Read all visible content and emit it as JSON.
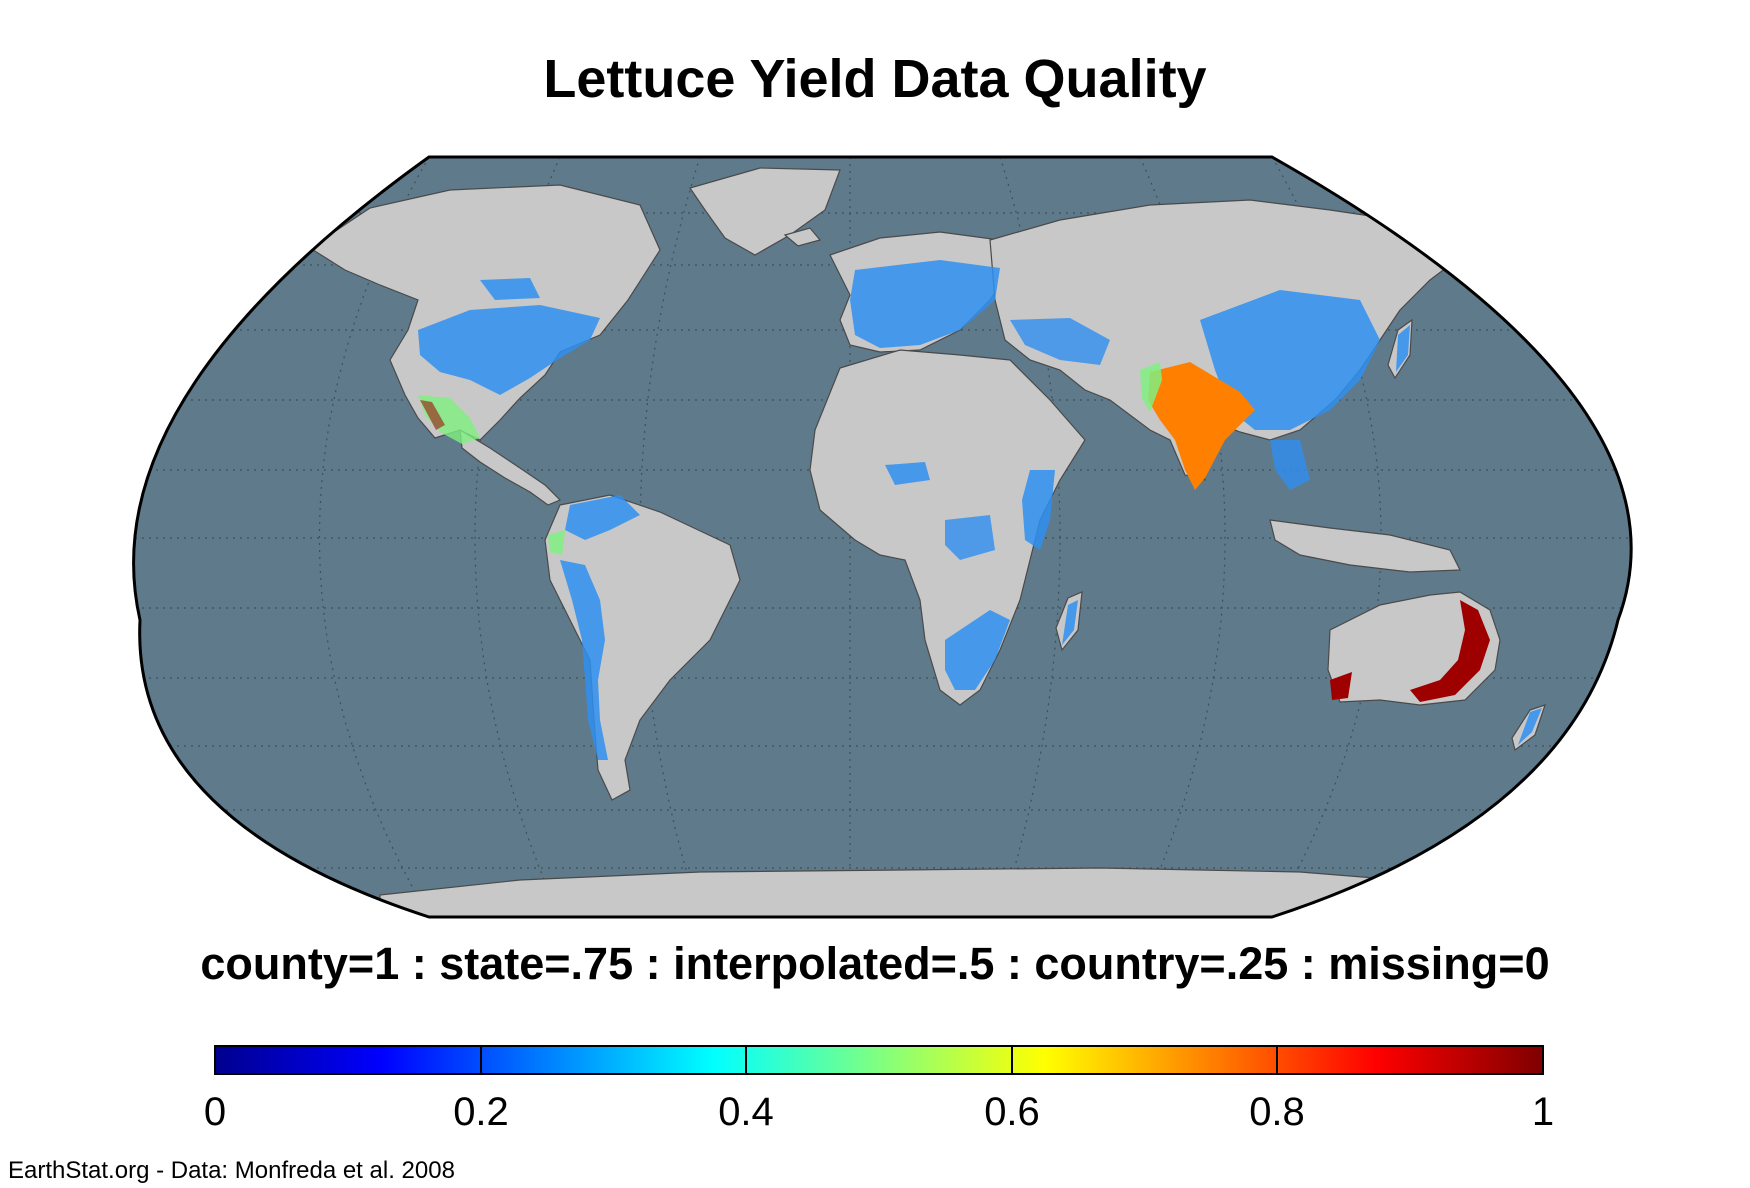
{
  "title": "Lettuce Yield Data Quality",
  "legend_caption": "county=1 : state=.75 : interpolated=.5 : country=.25 : missing=0",
  "colorbar": {
    "ticks": [
      "0",
      "0.2",
      "0.4",
      "0.6",
      "0.8",
      "1"
    ],
    "range": [
      0,
      1
    ],
    "colormap": "jet"
  },
  "source": "EarthStat.org - Data: Monfreda et al. 2008",
  "colors": {
    "ocean": "#5f7a8b",
    "land": "#c8c8c8",
    "country_value": "#2f8ff0",
    "interpolated_value": "#80f080",
    "state_value": "#ff8000",
    "county_value": "#9e0000"
  }
}
